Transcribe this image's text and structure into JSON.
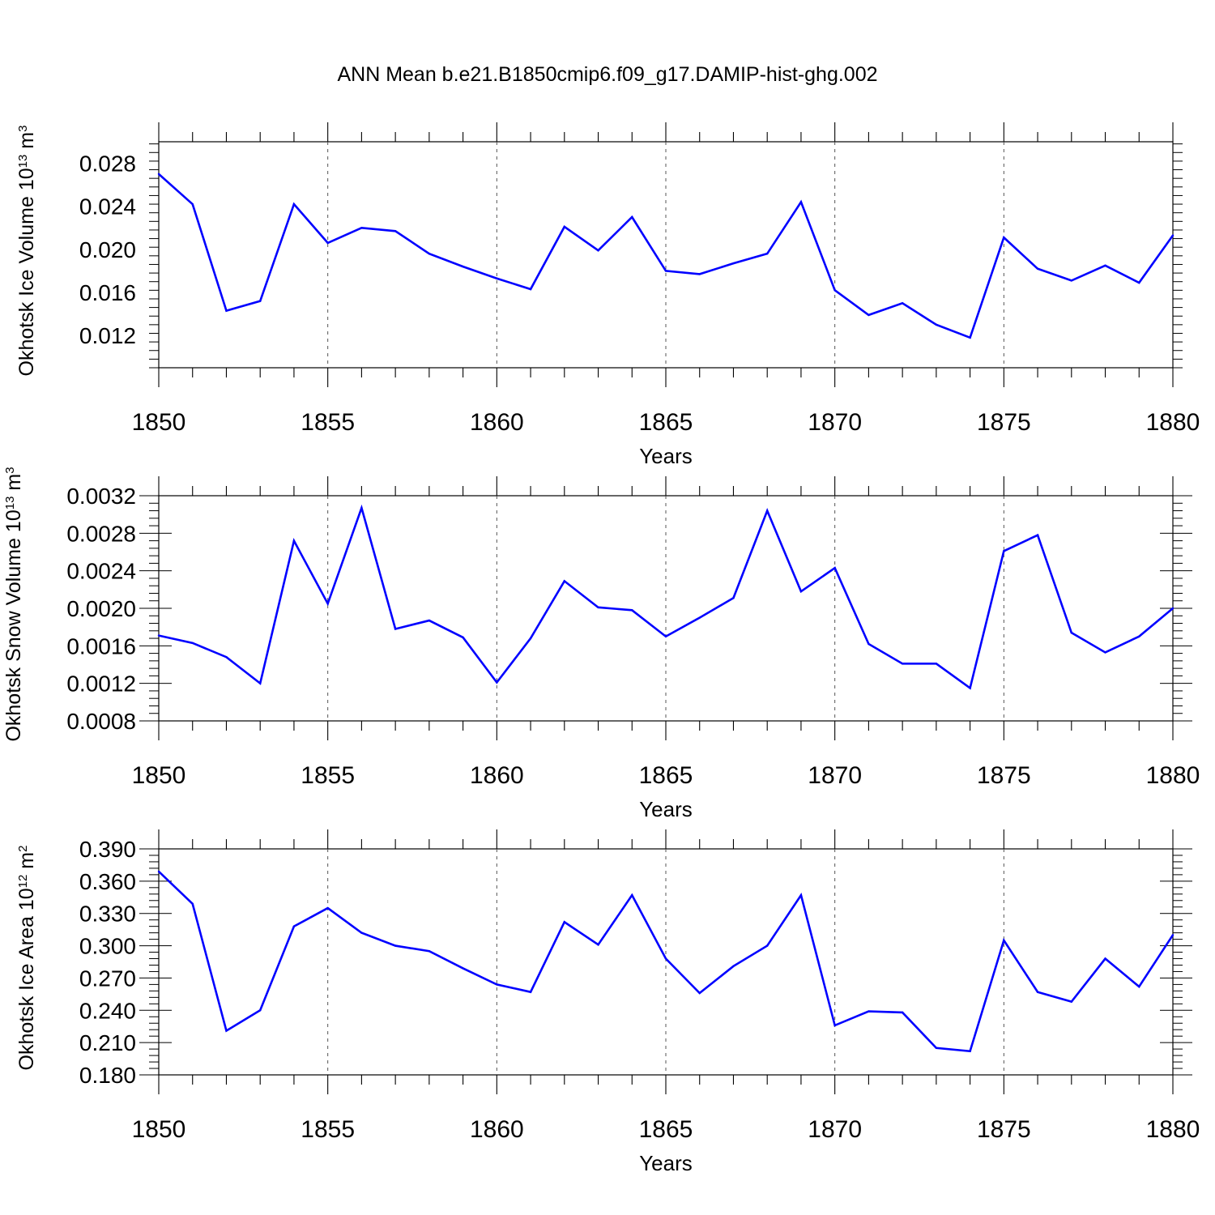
{
  "title": "ANN Mean b.e21.B1850cmip6.f09_g17.DAMIP-hist-ghg.002",
  "colors": {
    "line": "#0000ff",
    "axis": "#000000",
    "grid": "#555555",
    "background": "#ffffff"
  },
  "chart_data": [
    {
      "type": "line",
      "ylabel": {
        "base": "Okhotsk Ice Volume 10",
        "exponent": "13",
        "unit": " m",
        "unit_exponent": "3"
      },
      "xlabel": "Years",
      "xlim": [
        1850,
        1880
      ],
      "ylim": [
        0.009,
        0.03
      ],
      "x_ticks": [
        "1850",
        "1855",
        "1860",
        "1865",
        "1870",
        "1875",
        "1880"
      ],
      "y_ticks": [
        "0.012",
        "0.016",
        "0.020",
        "0.024",
        "0.028"
      ],
      "grid": "vertical dashed at major x ticks",
      "x": [
        1850,
        1851,
        1852,
        1853,
        1854,
        1855,
        1856,
        1857,
        1858,
        1859,
        1860,
        1861,
        1862,
        1863,
        1864,
        1865,
        1866,
        1867,
        1868,
        1869,
        1870,
        1871,
        1872,
        1873,
        1874,
        1875,
        1876,
        1877,
        1878,
        1879,
        1880
      ],
      "series": [
        {
          "values": [
            0.027,
            0.0242,
            0.0143,
            0.0152,
            0.0242,
            0.0206,
            0.022,
            0.0217,
            0.0196,
            0.0184,
            0.0173,
            0.0163,
            0.0221,
            0.0199,
            0.023,
            0.018,
            0.0177,
            0.0187,
            0.0196,
            0.0244,
            0.0162,
            0.0139,
            0.015,
            0.013,
            0.0118,
            0.0211,
            0.0182,
            0.0171,
            0.0185,
            0.0169,
            0.0213
          ]
        }
      ]
    },
    {
      "type": "line",
      "ylabel": {
        "base": "Okhotsk Snow Volume 10",
        "exponent": "13",
        "unit": " m",
        "unit_exponent": "3"
      },
      "xlabel": "Years",
      "xlim": [
        1850,
        1880
      ],
      "ylim": [
        0.0008,
        0.0032
      ],
      "x_ticks": [
        "1850",
        "1855",
        "1860",
        "1865",
        "1870",
        "1875",
        "1880"
      ],
      "y_ticks": [
        "0.0008",
        "0.0012",
        "0.0016",
        "0.0020",
        "0.0024",
        "0.0028",
        "0.0032"
      ],
      "grid": "vertical dashed at major x ticks",
      "x": [
        1850,
        1851,
        1852,
        1853,
        1854,
        1855,
        1856,
        1857,
        1858,
        1859,
        1860,
        1861,
        1862,
        1863,
        1864,
        1865,
        1866,
        1867,
        1868,
        1869,
        1870,
        1871,
        1872,
        1873,
        1874,
        1875,
        1876,
        1877,
        1878,
        1879,
        1880
      ],
      "series": [
        {
          "values": [
            0.00171,
            0.00163,
            0.00148,
            0.0012,
            0.00272,
            0.00205,
            0.00307,
            0.00178,
            0.00187,
            0.00169,
            0.00121,
            0.00168,
            0.00229,
            0.00201,
            0.00198,
            0.0017,
            0.0019,
            0.00211,
            0.00304,
            0.00218,
            0.00243,
            0.00162,
            0.00141,
            0.00141,
            0.00115,
            0.00261,
            0.00278,
            0.00174,
            0.00153,
            0.0017,
            0.002
          ]
        }
      ]
    },
    {
      "type": "line",
      "ylabel": {
        "base": "Okhotsk Ice Area 10",
        "exponent": "12",
        "unit": " m",
        "unit_exponent": "2"
      },
      "xlabel": "Years",
      "xlim": [
        1850,
        1880
      ],
      "ylim": [
        0.18,
        0.39
      ],
      "x_ticks": [
        "1850",
        "1855",
        "1860",
        "1865",
        "1870",
        "1875",
        "1880"
      ],
      "y_ticks": [
        "0.180",
        "0.210",
        "0.240",
        "0.270",
        "0.300",
        "0.330",
        "0.360",
        "0.390"
      ],
      "grid": "vertical dashed at major x ticks",
      "x": [
        1850,
        1851,
        1852,
        1853,
        1854,
        1855,
        1856,
        1857,
        1858,
        1859,
        1860,
        1861,
        1862,
        1863,
        1864,
        1865,
        1866,
        1867,
        1868,
        1869,
        1870,
        1871,
        1872,
        1873,
        1874,
        1875,
        1876,
        1877,
        1878,
        1879,
        1880
      ],
      "series": [
        {
          "values": [
            0.369,
            0.339,
            0.221,
            0.24,
            0.318,
            0.335,
            0.312,
            0.3,
            0.295,
            0.279,
            0.264,
            0.257,
            0.322,
            0.301,
            0.347,
            0.288,
            0.256,
            0.281,
            0.3,
            0.347,
            0.226,
            0.239,
            0.238,
            0.205,
            0.202,
            0.305,
            0.257,
            0.248,
            0.288,
            0.262,
            0.31
          ]
        }
      ]
    }
  ]
}
